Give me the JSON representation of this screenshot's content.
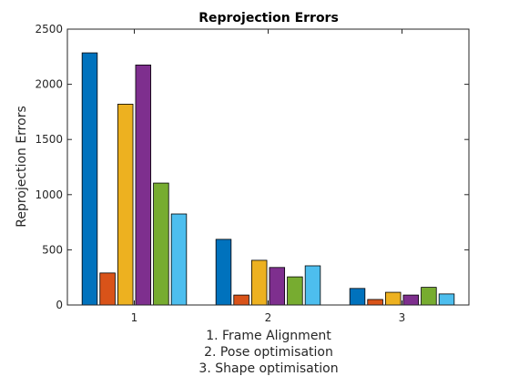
{
  "chart_data": {
    "type": "bar",
    "title": "Reprojection Errors",
    "ylabel": "Reprojection Errors",
    "xlabel_lines": [
      "1. Frame Alignment",
      "2. Pose optimisation",
      "3. Shape optimisation"
    ],
    "categories": [
      "1",
      "2",
      "3"
    ],
    "ylim": [
      0,
      2500
    ],
    "yticks": [
      0,
      500,
      1000,
      1500,
      2000,
      2500
    ],
    "grid": false,
    "series": [
      {
        "color": "#0072BD",
        "values": [
          2285,
          595,
          150
        ]
      },
      {
        "color": "#D95319",
        "values": [
          290,
          90,
          50
        ]
      },
      {
        "color": "#EDB120",
        "values": [
          1820,
          405,
          115
        ]
      },
      {
        "color": "#7E2F8E",
        "values": [
          2175,
          340,
          90
        ]
      },
      {
        "color": "#77AC30",
        "values": [
          1105,
          255,
          160
        ]
      },
      {
        "color": "#4DBEEE",
        "values": [
          825,
          355,
          100
        ]
      }
    ]
  }
}
